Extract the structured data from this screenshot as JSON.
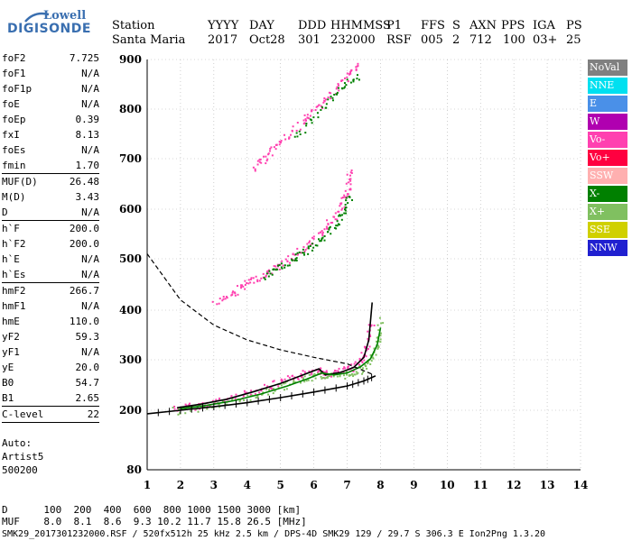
{
  "logo": {
    "top": "Lowell",
    "main": "DIGISONDE"
  },
  "header": {
    "row1": [
      "Station",
      "YYYY",
      "DAY",
      "DDD",
      "HHMMSS",
      "P1",
      "FFS",
      "S",
      "AXN",
      "PPS",
      "IGA",
      "PS"
    ],
    "row2": [
      "Santa Maria",
      "2017",
      "Oct28",
      "301",
      "232000",
      "RSF",
      "005",
      "2",
      "712",
      "100",
      "03+",
      "25"
    ]
  },
  "params": [
    {
      "name": "foF2",
      "value": "7.725"
    },
    {
      "name": "foF1",
      "value": "N/A"
    },
    {
      "name": "foF1p",
      "value": "N/A"
    },
    {
      "name": "foE",
      "value": "N/A"
    },
    {
      "name": "foEp",
      "value": "0.39"
    },
    {
      "name": "fxI",
      "value": "8.13"
    },
    {
      "name": "foEs",
      "value": "N/A"
    },
    {
      "name": "fmin",
      "value": "1.70",
      "sep": true
    },
    {
      "name": "MUF(D)",
      "value": "26.48"
    },
    {
      "name": "M(D)",
      "value": "3.43"
    },
    {
      "name": "D",
      "value": "N/A",
      "sep": true
    },
    {
      "name": "h`F",
      "value": "200.0"
    },
    {
      "name": "h`F2",
      "value": "200.0"
    },
    {
      "name": "h`E",
      "value": "N/A"
    },
    {
      "name": "h`Es",
      "value": "N/A",
      "sep": true
    },
    {
      "name": "hmF2",
      "value": "266.7"
    },
    {
      "name": "hmF1",
      "value": "N/A"
    },
    {
      "name": "hmE",
      "value": "110.0"
    },
    {
      "name": "yF2",
      "value": "59.3"
    },
    {
      "name": "yF1",
      "value": "N/A"
    },
    {
      "name": "yE",
      "value": "20.0"
    },
    {
      "name": "B0",
      "value": "54.7"
    },
    {
      "name": "B1",
      "value": "2.65",
      "sep": true
    },
    {
      "name": "C-level",
      "value": "22",
      "sep": true
    }
  ],
  "auto": {
    "line1": "Auto:",
    "line2": "Artist5",
    "line3": "500200"
  },
  "footer": {
    "d_row": "D      100  200  400  600  800 1000 1500 3000 [km]",
    "muf_row": "MUF    8.0  8.1  8.6  9.3 10.2 11.7 15.8 26.5 [MHz]",
    "file_row": "SMK29_2017301232000.RSF / 520fx512h 25 kHz 2.5 km / DPS-4D SMK29 129 / 29.7 S 306.3 E Ion2Png 1.3.20"
  },
  "legend": [
    {
      "label": "NoVal",
      "bg": "#808080",
      "fg": "#ffffff"
    },
    {
      "label": "NNE",
      "bg": "#00e0f0",
      "fg": "#ffffff"
    },
    {
      "label": "E",
      "bg": "#4a90e8",
      "fg": "#ffffff"
    },
    {
      "label": "W",
      "bg": "#b000b0",
      "fg": "#ffffff"
    },
    {
      "label": "Vo-",
      "bg": "#ff40b0",
      "fg": "#ffffff"
    },
    {
      "label": "Vo+",
      "bg": "#ff0040",
      "fg": "#ffffff"
    },
    {
      "label": "SSW",
      "bg": "#ffb0b0",
      "fg": "#ffffff"
    },
    {
      "label": "X-",
      "bg": "#008000",
      "fg": "#ffffff"
    },
    {
      "label": "X+",
      "bg": "#80c060",
      "fg": "#ffffff"
    },
    {
      "label": "SSE",
      "bg": "#d0d000",
      "fg": "#ffffff"
    },
    {
      "label": "NNW",
      "bg": "#2020d0",
      "fg": "#ffffff"
    }
  ],
  "chart_data": {
    "type": "scatter",
    "xlabel": "",
    "ylabel": "",
    "xlim": [
      1,
      14
    ],
    "ylim": [
      80,
      900
    ],
    "x_ticks": [
      1,
      2,
      3,
      4,
      5,
      6,
      7,
      8,
      9,
      10,
      11,
      12,
      13,
      14
    ],
    "y_ticks": [
      80,
      200,
      300,
      400,
      500,
      600,
      700,
      800,
      900
    ],
    "grid": "dotted",
    "series": [
      {
        "name": "O-trace",
        "color": "#ff40b0",
        "points": [
          [
            1.8,
            205
          ],
          [
            2.5,
            210
          ],
          [
            3.2,
            220
          ],
          [
            4.0,
            235
          ],
          [
            4.8,
            252
          ],
          [
            5.5,
            268
          ],
          [
            6.1,
            284
          ],
          [
            6.3,
            272
          ],
          [
            6.7,
            276
          ],
          [
            7.1,
            285
          ],
          [
            7.4,
            300
          ],
          [
            7.6,
            330
          ],
          [
            7.72,
            380
          ]
        ]
      },
      {
        "name": "X-trace",
        "color": "#80c060",
        "points": [
          [
            1.8,
            200
          ],
          [
            2.5,
            205
          ],
          [
            3.2,
            214
          ],
          [
            4.0,
            226
          ],
          [
            4.8,
            242
          ],
          [
            5.5,
            258
          ],
          [
            6.1,
            272
          ],
          [
            6.5,
            268
          ],
          [
            7.0,
            272
          ],
          [
            7.4,
            282
          ],
          [
            7.7,
            300
          ],
          [
            7.9,
            330
          ],
          [
            8.0,
            385
          ]
        ]
      },
      {
        "name": "F2-echoes",
        "color": "#ff40b0",
        "points": [
          [
            3.0,
            415
          ],
          [
            3.6,
            435
          ],
          [
            4.0,
            455
          ],
          [
            4.5,
            470
          ],
          [
            5.0,
            490
          ],
          [
            5.5,
            515
          ],
          [
            6.0,
            540
          ],
          [
            6.4,
            570
          ],
          [
            6.8,
            605
          ],
          [
            7.0,
            640
          ],
          [
            7.05,
            680
          ]
        ]
      },
      {
        "name": "F2-echoes-x",
        "color": "#008000",
        "points": [
          [
            4.5,
            465
          ],
          [
            5.0,
            485
          ],
          [
            5.5,
            505
          ],
          [
            6.0,
            530
          ],
          [
            6.5,
            560
          ],
          [
            6.9,
            595
          ],
          [
            7.1,
            630
          ]
        ]
      },
      {
        "name": "multi-hop",
        "color": "#ff40b0",
        "points": [
          [
            4.2,
            680
          ],
          [
            4.6,
            710
          ],
          [
            5.0,
            735
          ],
          [
            5.6,
            770
          ],
          [
            6.0,
            800
          ],
          [
            6.5,
            830
          ],
          [
            7.0,
            870
          ],
          [
            7.3,
            890
          ]
        ]
      },
      {
        "name": "multi-hop-x",
        "color": "#008000",
        "points": [
          [
            5.4,
            740
          ],
          [
            6.2,
            800
          ],
          [
            6.8,
            840
          ],
          [
            7.3,
            870
          ]
        ]
      }
    ],
    "lines": [
      {
        "name": "autoscaled O",
        "color": "#000000",
        "dash": false,
        "points": [
          [
            1.9,
            205
          ],
          [
            2.6,
            212
          ],
          [
            3.4,
            222
          ],
          [
            4.2,
            237
          ],
          [
            5.0,
            253
          ],
          [
            5.6,
            268
          ],
          [
            6.15,
            282
          ],
          [
            6.35,
            270
          ],
          [
            6.8,
            275
          ],
          [
            7.2,
            285
          ],
          [
            7.5,
            305
          ],
          [
            7.65,
            340
          ],
          [
            7.75,
            415
          ]
        ]
      },
      {
        "name": "autoscaled X",
        "color": "#008000",
        "dash": false,
        "points": [
          [
            2.0,
            203
          ],
          [
            2.8,
            210
          ],
          [
            3.6,
            219
          ],
          [
            4.4,
            232
          ],
          [
            5.2,
            248
          ],
          [
            5.8,
            262
          ],
          [
            6.25,
            274
          ],
          [
            6.6,
            270
          ],
          [
            7.0,
            274
          ],
          [
            7.4,
            286
          ],
          [
            7.7,
            302
          ],
          [
            7.9,
            330
          ],
          [
            8.0,
            365
          ]
        ]
      },
      {
        "name": "profile",
        "color": "#000000",
        "dash": false,
        "ticks": true,
        "points": [
          [
            1.0,
            193
          ],
          [
            2.0,
            200
          ],
          [
            3.0,
            207
          ],
          [
            4.0,
            215
          ],
          [
            5.0,
            225
          ],
          [
            6.0,
            236
          ],
          [
            7.0,
            248
          ],
          [
            7.5,
            258
          ],
          [
            7.85,
            268
          ]
        ]
      },
      {
        "name": "MUF",
        "color": "#000000",
        "dash": true,
        "points": [
          [
            1.0,
            510
          ],
          [
            2.0,
            420
          ],
          [
            3.0,
            370
          ],
          [
            4.0,
            340
          ],
          [
            5.0,
            320
          ],
          [
            6.0,
            305
          ],
          [
            7.0,
            292
          ],
          [
            7.8,
            270
          ]
        ]
      }
    ]
  }
}
